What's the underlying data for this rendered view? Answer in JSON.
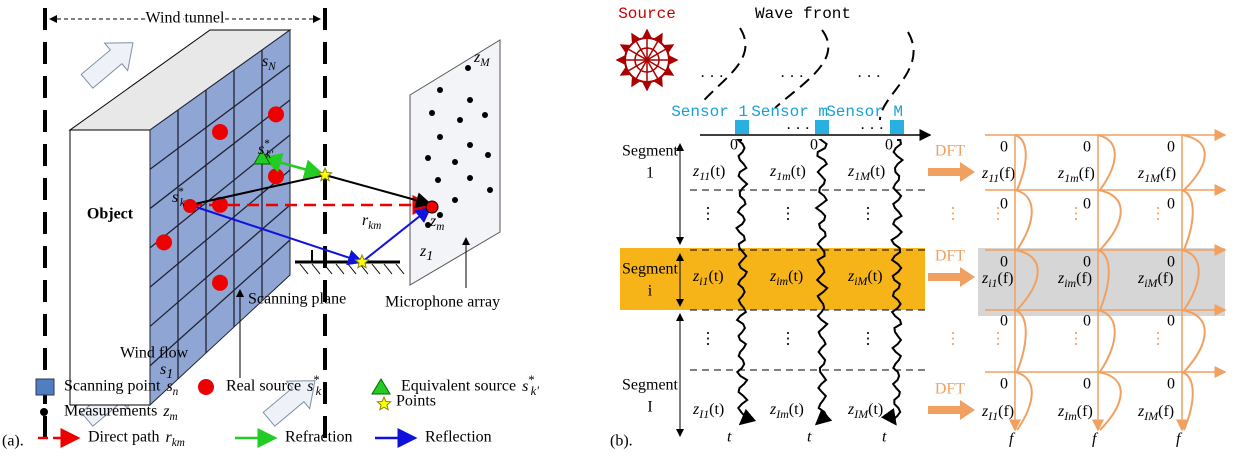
{
  "panel_a": {
    "label": "(a).",
    "wind_tunnel": "Wind tunnel",
    "object": "Object",
    "scanning_plane": "Scanning plane",
    "microphone_array": "Microphone array",
    "wind_flow": "Wind flow",
    "symbols": [
      {
        "base": "s",
        "sub": "N"
      },
      {
        "base": "z",
        "sub": "M"
      },
      {
        "base": "s",
        "sup": "*",
        "sub": "k'"
      },
      {
        "base": "s",
        "sup": "*",
        "sub": "k"
      },
      {
        "base": "r",
        "sub": "km"
      },
      {
        "base": "z",
        "sub": "m"
      },
      {
        "base": "z",
        "sub": "1"
      },
      {
        "base": "s",
        "sub": "1"
      }
    ],
    "legend": [
      {
        "text": "Scanning point",
        "symbol": {
          "base": "s",
          "sub": "n"
        }
      },
      {
        "text": "Real source",
        "symbol": {
          "base": "s",
          "sup": "*",
          "sub": "k"
        }
      },
      {
        "text": "Equivalent source",
        "symbol": {
          "base": "s",
          "sup": "*",
          "sub": "k'"
        }
      },
      {
        "text": "Measurements",
        "symbol": {
          "base": "z",
          "sub": "m"
        }
      },
      {
        "text": "Points"
      },
      {
        "text": "Direct path",
        "symbol": {
          "base": "r",
          "sub": "km"
        }
      },
      {
        "text": "Refraction"
      },
      {
        "text": "Reflection"
      }
    ]
  },
  "panel_b": {
    "label": "(b).",
    "source": "Source",
    "wave_front": "Wave front",
    "sensors": [
      "Sensor 1",
      "Sensor m",
      "Sensor M"
    ],
    "origin": "0",
    "h_dots": "· · ·",
    "v_dots": "⋮",
    "segments": [
      {
        "name": "Segment",
        "index": "1"
      },
      {
        "name": "Segment",
        "index": "i"
      },
      {
        "name": "Segment",
        "index": "I"
      }
    ],
    "dft": "DFT",
    "time_signals": [
      [
        {
          "base": "z",
          "sub": "11",
          "arg": "(t)"
        },
        {
          "base": "z",
          "sub": "1m",
          "arg": "(t)"
        },
        {
          "base": "z",
          "sub": "1M",
          "arg": "(t)"
        }
      ],
      [
        {
          "base": "z",
          "sub": "i1",
          "arg": "(t)"
        },
        {
          "base": "z",
          "sub": "im",
          "arg": "(t)"
        },
        {
          "base": "z",
          "sub": "iM",
          "arg": "(t)"
        }
      ],
      [
        {
          "base": "z",
          "sub": "I1",
          "arg": "(t)"
        },
        {
          "base": "z",
          "sub": "Im",
          "arg": "(t)"
        },
        {
          "base": "z",
          "sub": "IM",
          "arg": "(t)"
        }
      ]
    ],
    "spectra": [
      [
        {
          "base": "z",
          "sub": "11",
          "arg": "(f)"
        },
        {
          "base": "z",
          "sub": "1m",
          "arg": "(f)"
        },
        {
          "base": "z",
          "sub": "1M",
          "arg": "(f)"
        }
      ],
      [
        {
          "base": "z",
          "sub": "i1",
          "arg": "(f)"
        },
        {
          "base": "z",
          "sub": "im",
          "arg": "(f)"
        },
        {
          "base": "z",
          "sub": "iM",
          "arg": "(f)"
        }
      ],
      [
        {
          "base": "z",
          "sub": "I1",
          "arg": "(f)"
        },
        {
          "base": "z",
          "sub": "Im",
          "arg": "(f)"
        },
        {
          "base": "z",
          "sub": "IM",
          "arg": "(f)"
        }
      ]
    ],
    "time_axis": "t",
    "freq_axis": "f"
  }
}
